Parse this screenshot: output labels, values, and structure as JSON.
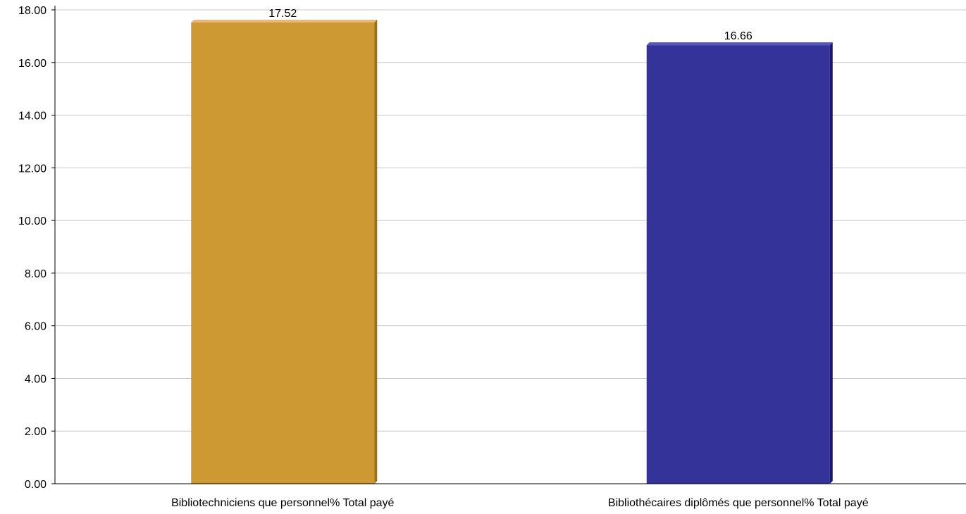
{
  "chart_data": {
    "type": "bar",
    "title": "",
    "xlabel": "",
    "ylabel": "",
    "categories": [
      "Bibliotechniciens que personnel% Total payé",
      "Bibliothécaires diplômés que personnel% Total payé"
    ],
    "values": [
      17.52,
      16.66
    ],
    "value_labels": [
      "17.52",
      "16.66"
    ],
    "ylim": [
      0,
      18
    ],
    "yticks": [
      0,
      2,
      4,
      6,
      8,
      10,
      12,
      14,
      16,
      18
    ],
    "ytick_labels": [
      "0.00",
      "2.00",
      "4.00",
      "6.00",
      "8.00",
      "10.00",
      "12.00",
      "14.00",
      "16.00",
      "18.00"
    ],
    "grid": true,
    "legend": "none",
    "colors": [
      {
        "face": "#cc9933",
        "side": "#9a6f22",
        "top": "#e8b878"
      },
      {
        "face": "#333399",
        "side": "#1a1a66",
        "top": "#5555bb"
      }
    ]
  }
}
